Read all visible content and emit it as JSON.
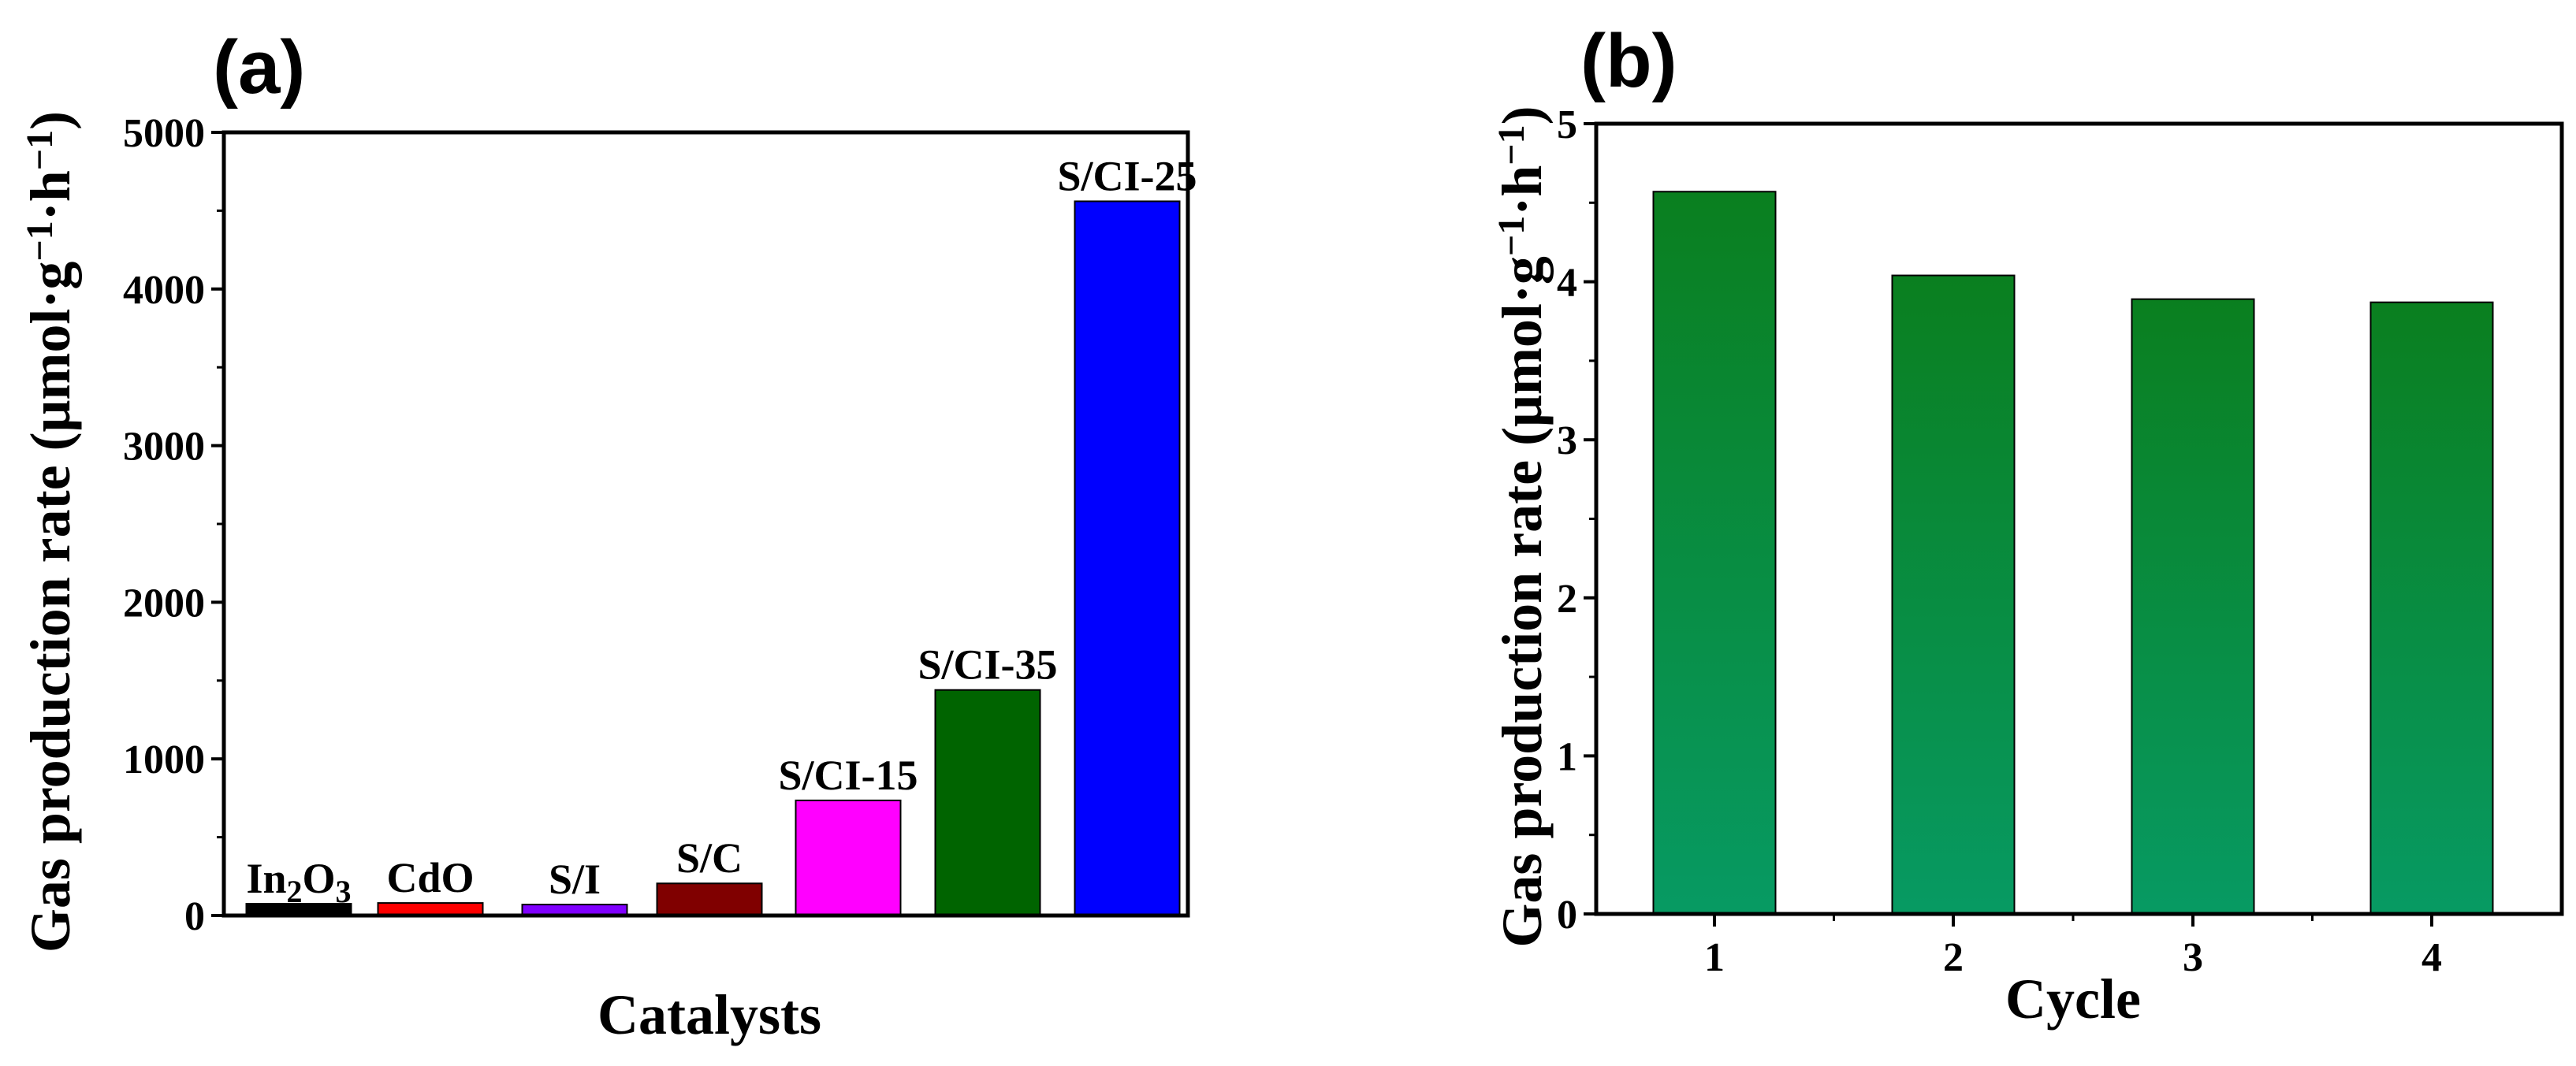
{
  "chart_data": [
    {
      "panel": "(a)",
      "type": "bar",
      "categories": [
        "In2O3",
        "CdO",
        "S/I",
        "S/C",
        "S/CI-15",
        "S/CI-35",
        "S/CI-25"
      ],
      "bar_labels": [
        "In2O3",
        "CdO",
        "S/I",
        "S/C",
        "S/CI-15",
        "S/CI-35",
        "S/CI-25"
      ],
      "values": [
        75,
        80,
        70,
        205,
        735,
        1440,
        4560
      ],
      "colors": [
        "#000000",
        "#ff0000",
        "#8000ff",
        "#800000",
        "#ff00ff",
        "#006400",
        "#0000ff"
      ],
      "xlabel": "Catalysts",
      "ylabel": "Gas production rate (μmol·g⁻¹·h⁻¹)",
      "ylim": [
        0,
        5000
      ],
      "yticks": [
        0,
        1000,
        2000,
        3000,
        4000,
        5000
      ],
      "grid": false
    },
    {
      "panel": "(b)",
      "type": "bar",
      "categories": [
        "1",
        "2",
        "3",
        "4"
      ],
      "values": [
        4.57,
        4.04,
        3.89,
        3.87
      ],
      "color": "#079a63",
      "xlabel": "Cycle",
      "ylabel": "Gas production rate (μmol·g⁻¹·h⁻¹)",
      "ylim": [
        0,
        5
      ],
      "yticks": [
        0,
        1,
        2,
        3,
        4,
        5
      ],
      "grid": false
    }
  ]
}
